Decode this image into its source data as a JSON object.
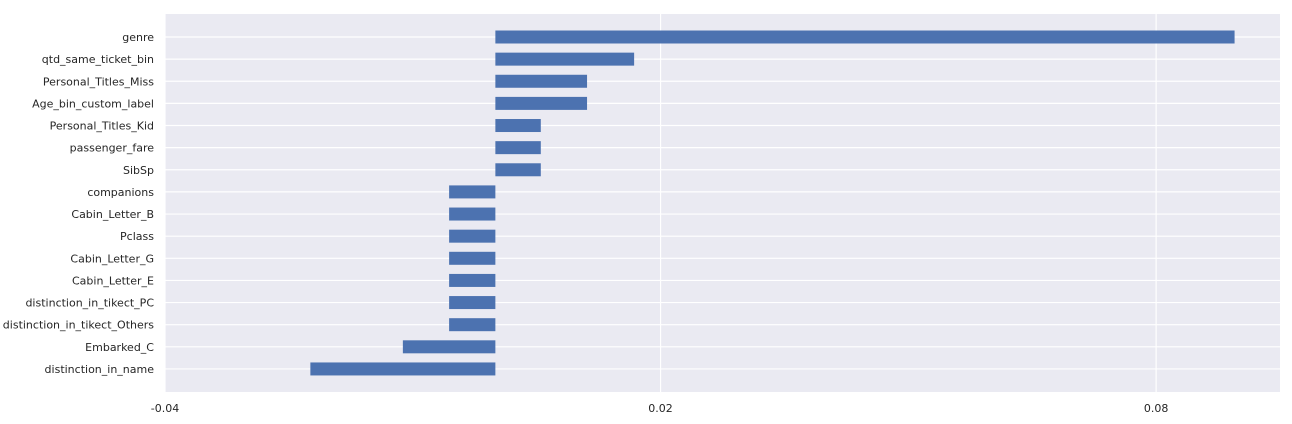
{
  "chart_data": {
    "type": "bar",
    "orientation": "horizontal",
    "categories": [
      "genre",
      "qtd_same_ticket_bin",
      "Personal_Titles_Miss",
      "Age_bin_custom_label",
      "Personal_Titles_Kid",
      "passenger_fare",
      "SibSp",
      "companions",
      "Cabin_Letter_B",
      "Pclass",
      "Cabin_Letter_G",
      "Cabin_Letter_E",
      "distinction_in_tikect_PC",
      "distinction_in_tikect_Others",
      "Embarked_C",
      "distinction_in_name"
    ],
    "values": [
      0.0895,
      0.0168,
      0.0111,
      0.0111,
      0.0055,
      0.0055,
      0.0055,
      -0.0056,
      -0.0056,
      -0.0056,
      -0.0056,
      -0.0056,
      -0.0056,
      -0.0056,
      -0.0112,
      -0.0224
    ],
    "xticks": [
      -0.04,
      0.02,
      0.08
    ],
    "xtick_labels": [
      "-0.04",
      "0.02",
      "0.08"
    ],
    "xlim": [
      -0.04,
      0.095
    ],
    "title": "",
    "xlabel": "",
    "ylabel": "",
    "grid": true,
    "colors": {
      "bar": "#4c72b0",
      "background": "#eaeaf2",
      "grid": "#ffffff",
      "text": "#262626"
    }
  }
}
